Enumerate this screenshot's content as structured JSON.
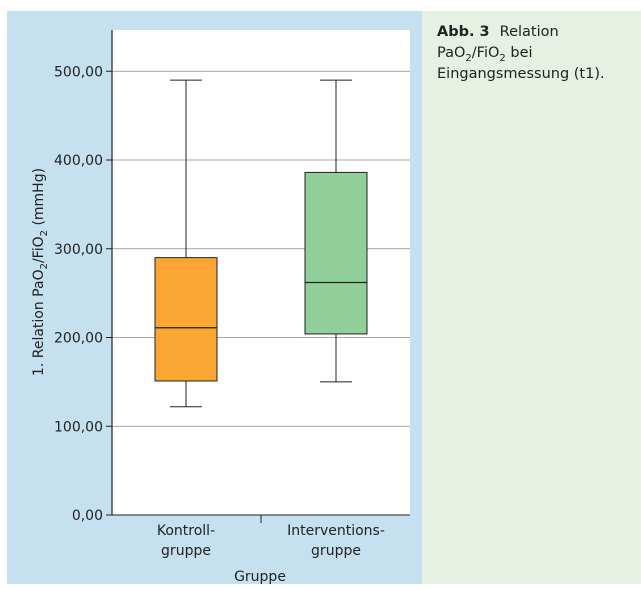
{
  "caption": {
    "label": "Abb. 3",
    "text_before_sub1": "Relation PaO",
    "sub1": "2",
    "slash": "/FiO",
    "sub2": "2",
    "text_after": " bei Eingangsmessung (t1)."
  },
  "chart_data": {
    "type": "boxplot",
    "ylabel": "1. Relation PaO2/FiO2 (mmHg)",
    "xlabel": "Gruppe",
    "ylim": [
      0,
      560
    ],
    "yticks": [
      0,
      100,
      200,
      300,
      400,
      500
    ],
    "ytick_labels": [
      "0,00",
      "100,00",
      "200,00",
      "300,00",
      "400,00",
      "500,00"
    ],
    "grid": true,
    "categories": [
      {
        "line1": "Kontroll-",
        "line2": "gruppe"
      },
      {
        "line1": "Interventions-",
        "line2": "gruppe"
      }
    ],
    "boxes": [
      {
        "name": "Kontrollgruppe",
        "min": 122,
        "q1": 151,
        "median": 211,
        "q3": 290,
        "max": 490,
        "color": "#f9a634"
      },
      {
        "name": "Interventionsgruppe",
        "min": 150,
        "q1": 204,
        "median": 262,
        "q3": 386,
        "max": 490,
        "color": "#93cf9a"
      }
    ]
  }
}
